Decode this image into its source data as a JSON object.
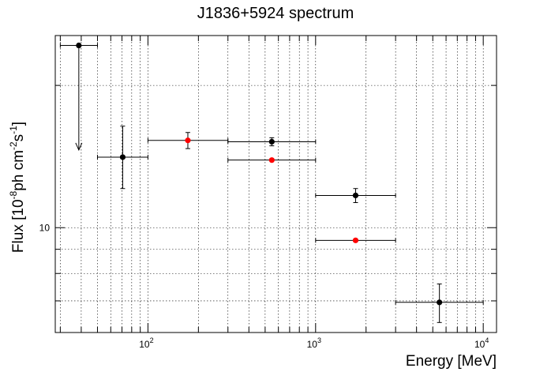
{
  "chart_data": {
    "type": "scatter",
    "title": "J1836+5924 spectrum",
    "xlabel": "Energy [MeV]",
    "ylabel": {
      "prefix": "Flux [10",
      "exp1": "-8",
      "mid": "ph cm",
      "exp2": "-2",
      "s": "s",
      "exp3": "-1",
      "suffix": "]"
    },
    "xscale": "log",
    "yscale": "log",
    "xlim": [
      28,
      12000
    ],
    "ylim": [
      6.0,
      25.5
    ],
    "grid": true,
    "x_tick_labels": [
      {
        "base": "10",
        "exp": "2",
        "value": 100
      },
      {
        "base": "10",
        "exp": "3",
        "value": 1000
      },
      {
        "base": "10",
        "exp": "4",
        "value": 10000
      }
    ],
    "y_tick_labels": [
      {
        "text": "10",
        "value": 10
      }
    ],
    "series": [
      {
        "color": "#000000",
        "points": [
          {
            "x": 38.7,
            "y": 24.3,
            "xlo": 30,
            "xhi": 50,
            "ylo": 24.3,
            "yhi": 24.3,
            "upper_limit": true,
            "arrow_to": 14.6
          },
          {
            "x": 70.7,
            "y": 14.1,
            "xlo": 50,
            "xhi": 100,
            "ylo": 12.1,
            "yhi": 16.4
          },
          {
            "x": 548,
            "y": 15.2,
            "xlo": 300,
            "xhi": 1000,
            "ylo": 14.9,
            "yhi": 15.5
          },
          {
            "x": 1732,
            "y": 11.7,
            "xlo": 1000,
            "xhi": 3000,
            "ylo": 11.3,
            "yhi": 12.1
          },
          {
            "x": 5477,
            "y": 6.95,
            "xlo": 3000,
            "xhi": 10000,
            "ylo": 6.3,
            "yhi": 7.6
          }
        ]
      },
      {
        "color": "#ff0000",
        "points": [
          {
            "x": 173,
            "y": 15.3,
            "xlo": 100,
            "xhi": 300,
            "ylo": 14.7,
            "yhi": 15.9
          },
          {
            "x": 548,
            "y": 13.9,
            "xlo": 300,
            "xhi": 1000,
            "ylo": 13.9,
            "yhi": 13.9
          },
          {
            "x": 1732,
            "y": 9.4,
            "xlo": 1000,
            "xhi": 3000,
            "ylo": 9.4,
            "yhi": 9.4
          }
        ]
      }
    ]
  }
}
